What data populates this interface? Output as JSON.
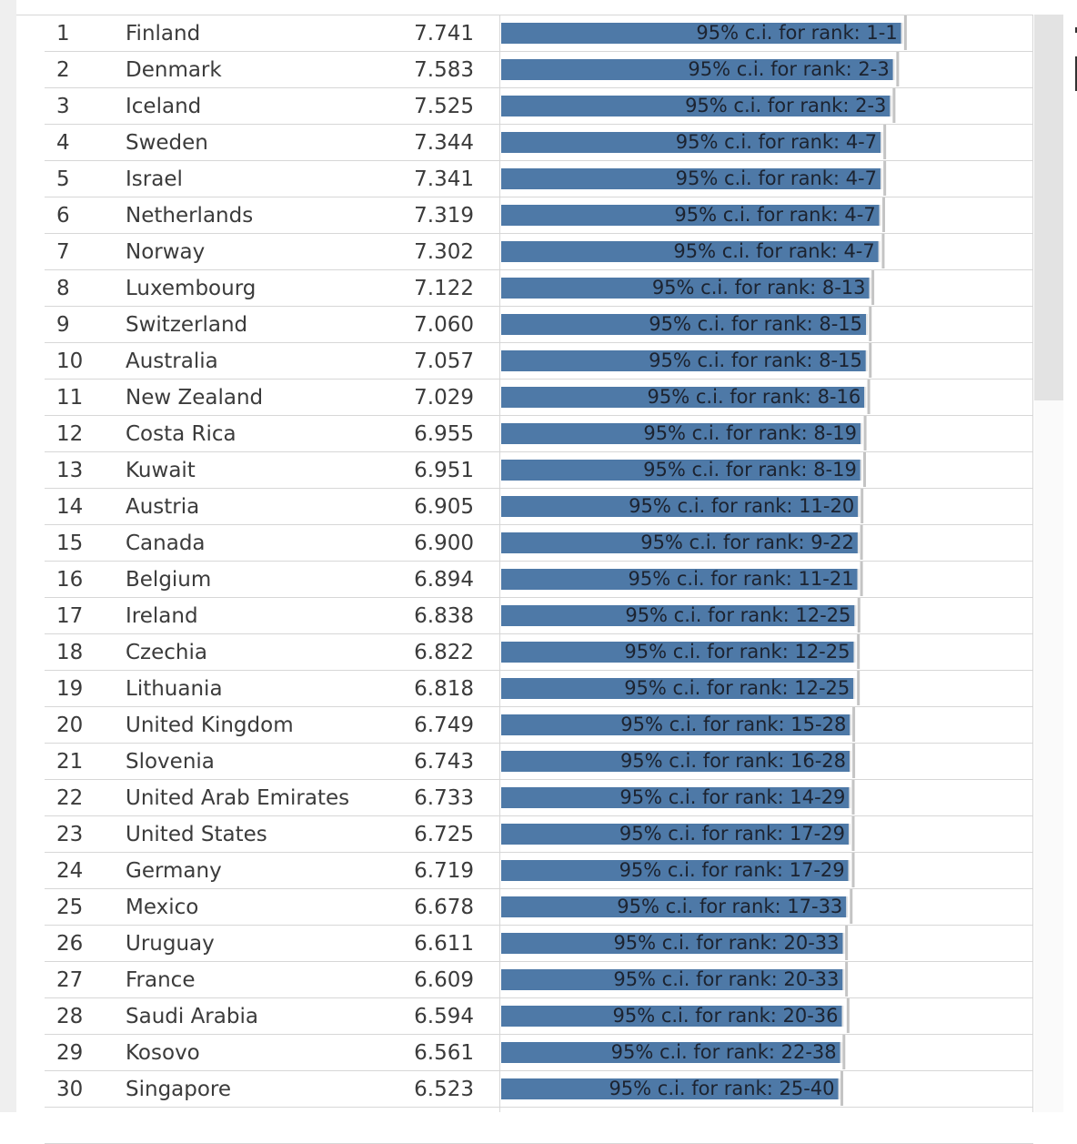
{
  "colors": {
    "bar": "#4e79a7",
    "ci_line": "#c4c4c4",
    "row_divider": "#d7d7d7",
    "text": "#3b3b3b",
    "label_text": "#1c2330"
  },
  "table": {
    "rows": [
      {
        "rank": "1",
        "country": "Finland",
        "score": "7.741",
        "ci_label": "95% c.i. for rank: 1-1"
      },
      {
        "rank": "2",
        "country": "Denmark",
        "score": "7.583",
        "ci_label": "95% c.i. for rank: 2-3"
      },
      {
        "rank": "3",
        "country": "Iceland",
        "score": "7.525",
        "ci_label": "95% c.i. for rank: 2-3"
      },
      {
        "rank": "4",
        "country": "Sweden",
        "score": "7.344",
        "ci_label": "95% c.i. for rank: 4-7"
      },
      {
        "rank": "5",
        "country": "Israel",
        "score": "7.341",
        "ci_label": "95% c.i. for rank: 4-7"
      },
      {
        "rank": "6",
        "country": "Netherlands",
        "score": "7.319",
        "ci_label": "95% c.i. for rank: 4-7"
      },
      {
        "rank": "7",
        "country": "Norway",
        "score": "7.302",
        "ci_label": "95% c.i. for rank: 4-7"
      },
      {
        "rank": "8",
        "country": "Luxembourg",
        "score": "7.122",
        "ci_label": "95% c.i. for rank: 8-13"
      },
      {
        "rank": "9",
        "country": "Switzerland",
        "score": "7.060",
        "ci_label": "95% c.i. for rank: 8-15"
      },
      {
        "rank": "10",
        "country": "Australia",
        "score": "7.057",
        "ci_label": "95% c.i. for rank: 8-15"
      },
      {
        "rank": "11",
        "country": "New Zealand",
        "score": "7.029",
        "ci_label": "95% c.i. for rank: 8-16"
      },
      {
        "rank": "12",
        "country": "Costa Rica",
        "score": "6.955",
        "ci_label": "95% c.i. for rank: 8-19"
      },
      {
        "rank": "13",
        "country": "Kuwait",
        "score": "6.951",
        "ci_label": "95% c.i. for rank: 8-19"
      },
      {
        "rank": "14",
        "country": "Austria",
        "score": "6.905",
        "ci_label": "95% c.i. for rank: 11-20"
      },
      {
        "rank": "15",
        "country": "Canada",
        "score": "6.900",
        "ci_label": "95% c.i. for rank: 9-22"
      },
      {
        "rank": "16",
        "country": "Belgium",
        "score": "6.894",
        "ci_label": "95% c.i. for rank: 11-21"
      },
      {
        "rank": "17",
        "country": "Ireland",
        "score": "6.838",
        "ci_label": "95% c.i. for rank: 12-25"
      },
      {
        "rank": "18",
        "country": "Czechia",
        "score": "6.822",
        "ci_label": "95% c.i. for rank: 12-25"
      },
      {
        "rank": "19",
        "country": "Lithuania",
        "score": "6.818",
        "ci_label": "95% c.i. for rank: 12-25"
      },
      {
        "rank": "20",
        "country": "United Kingdom",
        "score": "6.749",
        "ci_label": "95% c.i. for rank: 15-28"
      },
      {
        "rank": "21",
        "country": "Slovenia",
        "score": "6.743",
        "ci_label": "95% c.i. for rank: 16-28"
      },
      {
        "rank": "22",
        "country": "United Arab Emirates",
        "score": "6.733",
        "ci_label": "95% c.i. for rank: 14-29"
      },
      {
        "rank": "23",
        "country": "United States",
        "score": "6.725",
        "ci_label": "95% c.i. for rank: 17-29"
      },
      {
        "rank": "24",
        "country": "Germany",
        "score": "6.719",
        "ci_label": "95% c.i. for rank: 17-29"
      },
      {
        "rank": "25",
        "country": "Mexico",
        "score": "6.678",
        "ci_label": "95% c.i. for rank: 17-33"
      },
      {
        "rank": "26",
        "country": "Uruguay",
        "score": "6.611",
        "ci_label": "95% c.i. for rank: 20-33"
      },
      {
        "rank": "27",
        "country": "France",
        "score": "6.609",
        "ci_label": "95% c.i. for rank: 20-33"
      },
      {
        "rank": "28",
        "country": "Saudi Arabia",
        "score": "6.594",
        "ci_label": "95% c.i. for rank: 20-36"
      },
      {
        "rank": "29",
        "country": "Kosovo",
        "score": "6.561",
        "ci_label": "95% c.i. for rank: 22-38"
      },
      {
        "rank": "30",
        "country": "Singapore",
        "score": "6.523",
        "ci_label": "95% c.i. for rank: 25-40"
      }
    ]
  },
  "chart_data": {
    "type": "bar",
    "orientation": "horizontal",
    "title": "",
    "xlabel": "",
    "ylabel": "",
    "grid": false,
    "xlim": [
      0,
      8.03
    ],
    "categories": [
      "Finland",
      "Denmark",
      "Iceland",
      "Sweden",
      "Israel",
      "Netherlands",
      "Norway",
      "Luxembourg",
      "Switzerland",
      "Australia",
      "New Zealand",
      "Costa Rica",
      "Kuwait",
      "Austria",
      "Canada",
      "Belgium",
      "Ireland",
      "Czechia",
      "Lithuania",
      "United Kingdom",
      "Slovenia",
      "United Arab Emirates",
      "United States",
      "Germany",
      "Mexico",
      "Uruguay",
      "France",
      "Saudi Arabia",
      "Kosovo",
      "Singapore"
    ],
    "values": [
      7.741,
      7.583,
      7.525,
      7.344,
      7.341,
      7.319,
      7.302,
      7.122,
      7.06,
      7.057,
      7.029,
      6.955,
      6.951,
      6.905,
      6.9,
      6.894,
      6.838,
      6.822,
      6.818,
      6.749,
      6.743,
      6.733,
      6.725,
      6.719,
      6.678,
      6.611,
      6.609,
      6.594,
      6.561,
      6.523
    ],
    "upper_whisker": [
      7.85,
      7.7,
      7.63,
      7.45,
      7.45,
      7.43,
      7.42,
      7.22,
      7.17,
      7.17,
      7.14,
      7.07,
      7.06,
      7.01,
      7.0,
      7.0,
      6.95,
      6.94,
      6.94,
      6.85,
      6.85,
      6.84,
      6.84,
      6.84,
      6.8,
      6.71,
      6.71,
      6.74,
      6.66,
      6.62
    ]
  }
}
